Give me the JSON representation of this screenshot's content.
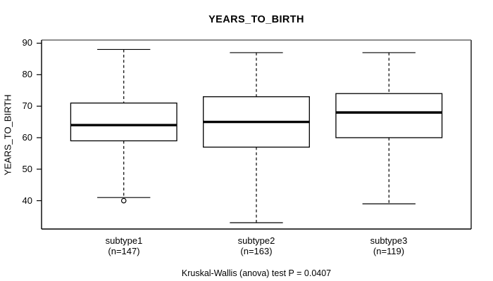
{
  "chart_data": {
    "type": "boxplot",
    "title": "YEARS_TO_BIRTH",
    "ylabel": "YEARS_TO_BIRTH",
    "xlabel": "",
    "ylim": [
      31,
      91
    ],
    "yticks": [
      40,
      50,
      60,
      70,
      80,
      90
    ],
    "grid": "off",
    "legend": "none",
    "categories": [
      "subtype1",
      "subtype2",
      "subtype3"
    ],
    "counts": [
      "(n=147)",
      "(n=163)",
      "(n=119)"
    ],
    "series": [
      {
        "name": "subtype1",
        "n": 147,
        "whisker_low": 41,
        "q1": 59,
        "median": 64,
        "q3": 71,
        "whisker_high": 88,
        "outliers": [
          40
        ]
      },
      {
        "name": "subtype2",
        "n": 163,
        "whisker_low": 33,
        "q1": 57,
        "median": 65,
        "q3": 73,
        "whisker_high": 87,
        "outliers": []
      },
      {
        "name": "subtype3",
        "n": 119,
        "whisker_low": 39,
        "q1": 60,
        "median": 68,
        "q3": 74,
        "whisker_high": 87,
        "outliers": []
      }
    ],
    "annotation": "Kruskal-Wallis (anova) test P = 0.0407",
    "colors": {
      "line": "#000000",
      "box_fill": "#ffffff",
      "background": "#ffffff",
      "frame_top": "#8c8c8c",
      "frame_right": "#5b5b5b"
    }
  }
}
